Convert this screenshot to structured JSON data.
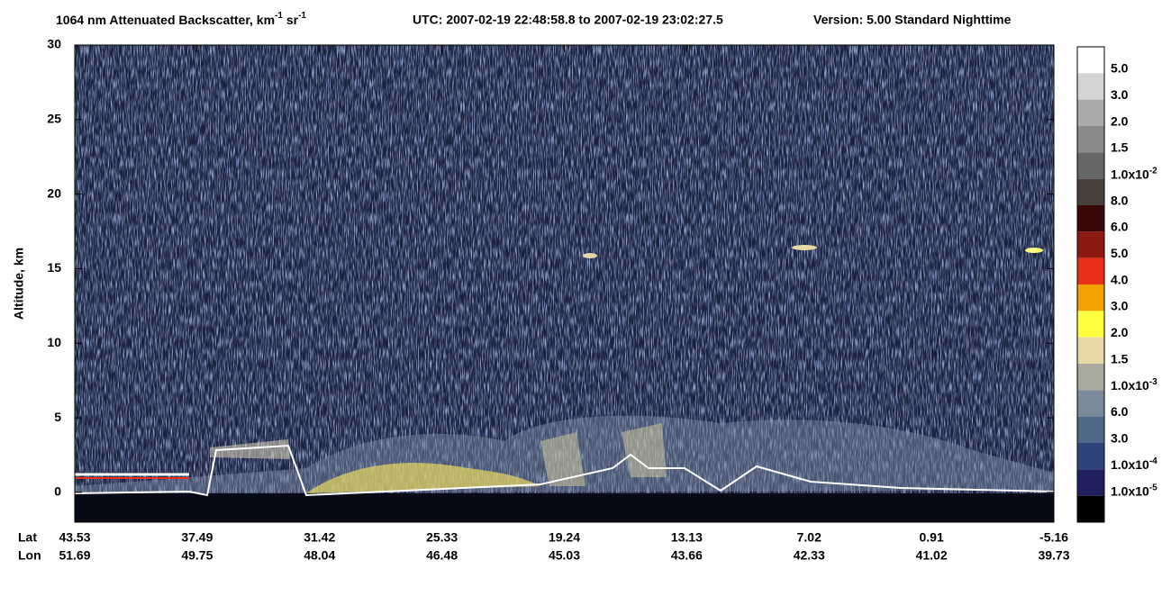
{
  "chart_data": {
    "type": "curtain",
    "title": [
      "1064 nm Attenuated Backscatter, km",
      "-1",
      " sr",
      "-1"
    ],
    "time_range": "UTC:  2007-02-19 22:48:58.8  to  2007-02-19 23:02:27.5",
    "version": "Version: 5.00  Standard  Nighttime",
    "y_label": "Altitude, km",
    "ylim": [
      -2,
      30
    ],
    "yticks": [
      0,
      5,
      10,
      15,
      20,
      25,
      30
    ],
    "x_row_labels": [
      "Lat",
      "Lon"
    ],
    "lat": [
      "43.53",
      "37.49",
      "31.42",
      "25.33",
      "19.24",
      "13.13",
      "7.02",
      "0.91",
      "-5.16"
    ],
    "lon": [
      "51.69",
      "49.75",
      "48.04",
      "46.48",
      "45.03",
      "43.66",
      "42.33",
      "41.02",
      "39.73"
    ],
    "colorbar": {
      "colors": [
        "#ffffff",
        "#d4d4d4",
        "#aaaaaa",
        "#8a8a8a",
        "#666666",
        "#4a403c",
        "#3a0808",
        "#8c1a12",
        "#e8301a",
        "#f5a000",
        "#ffff40",
        "#e8d8a8",
        "#a8a89c",
        "#7a8a9a",
        "#506888",
        "#30427a",
        "#202060",
        "#000000"
      ],
      "labels": [
        "5.0",
        "3.0",
        "2.0",
        "1.5",
        [
          "1.0x10",
          "-2"
        ],
        "8.0",
        "6.0",
        "5.0",
        "4.0",
        "3.0",
        "2.0",
        "1.5",
        [
          "1.0x10",
          "-3"
        ],
        "6.0",
        "3.0",
        [
          "1.0x10",
          "-4"
        ],
        [
          "1.0x10",
          "-5"
        ]
      ]
    }
  }
}
